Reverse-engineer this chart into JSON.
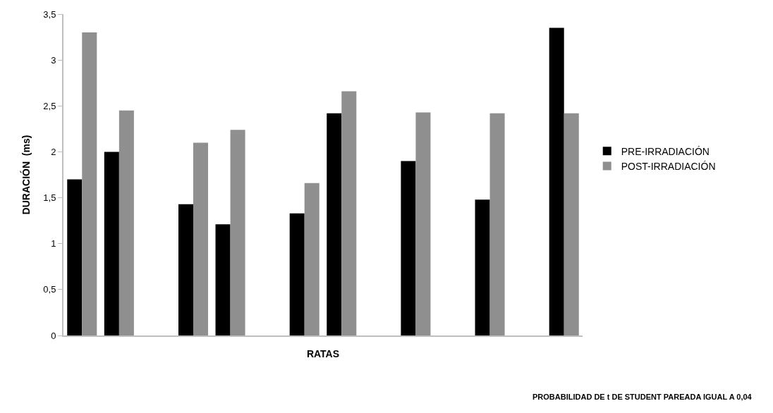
{
  "chart_data": {
    "type": "bar",
    "xlabel": "RATAS",
    "ylabel": "DURACIÓN  (ms)",
    "categories": [
      null,
      null,
      null,
      null,
      null,
      null,
      null,
      null,
      null,
      null,
      null,
      null,
      null,
      null
    ],
    "series": [
      {
        "name": "PRE-IRRADIACIÓN",
        "color": "#000000",
        "values": [
          1.7,
          2.0,
          null,
          1.43,
          1.21,
          null,
          1.33,
          2.42,
          null,
          1.9,
          null,
          1.48,
          null,
          3.35
        ]
      },
      {
        "name": "POST-IRRADIACIÓN",
        "color": "#8f8f8f",
        "values": [
          3.3,
          2.45,
          null,
          2.1,
          2.24,
          null,
          1.66,
          2.66,
          null,
          2.43,
          null,
          2.42,
          null,
          2.42
        ]
      }
    ],
    "ylim": [
      0,
      3.5
    ],
    "yticks": [
      0,
      {
        "value": 0.5,
        "label": "0,5"
      },
      1,
      {
        "value": 1.5,
        "label": "1,5"
      },
      2,
      {
        "value": 2.5,
        "label": "2,5"
      },
      3,
      {
        "value": 3.5,
        "label": "3,5"
      }
    ],
    "tick_labels": "y",
    "legend": "right",
    "annotations": [
      "PROBABILIDAD DE t DE STUDENT PAREADA IGUAL A 0,04"
    ]
  }
}
